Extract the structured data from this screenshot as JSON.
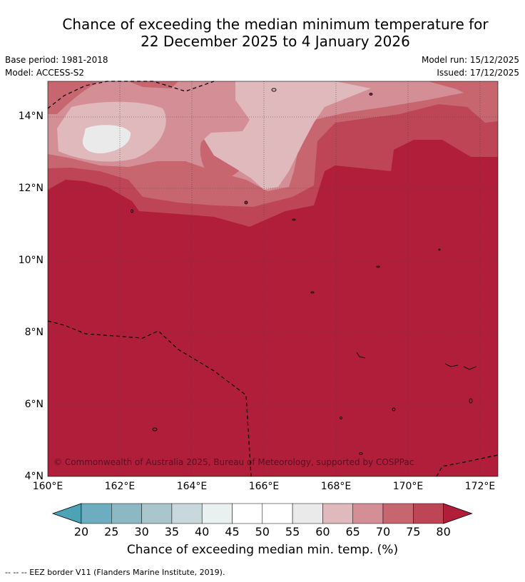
{
  "title_line1": "Chance of exceeding the median minimum temperature for",
  "title_line2": "22 December 2025 to 4 January 2026",
  "base_period": "Base period: 1981-2018",
  "model": "Model: ACCESS-S2",
  "model_run": "Model run: 15/12/2025",
  "issued": "Issued: 17/12/2025",
  "copyright": "© Commonwealth of Australia 2025, Bureau of Meteorology, supported by COSPPac",
  "y_ticks": [
    "14°N",
    "12°N",
    "10°N",
    "8°N",
    "6°N",
    "4°N"
  ],
  "x_ticks": [
    "160°E",
    "162°E",
    "164°E",
    "166°E",
    "168°E",
    "170°E",
    "172°E"
  ],
  "colorbar": {
    "labels": [
      "20",
      "25",
      "30",
      "35",
      "40",
      "45",
      "50",
      "55",
      "60",
      "65",
      "70",
      "75",
      "80"
    ],
    "colors": [
      "#4ba3b5",
      "#6caebf",
      "#8bb8c3",
      "#a8c6cb",
      "#c8d8dc",
      "#e8f0f0",
      "#ffffff",
      "#ffffff",
      "#eaeaea",
      "#e0b9bc",
      "#d48e96",
      "#c86670",
      "#bd4556",
      "#b01e3a"
    ],
    "title": "Chance of exceeding median min. temp. (%)"
  },
  "footnote": "--  --  -- EEZ border V11 (Flanders Marine Institute, 2019)."
}
